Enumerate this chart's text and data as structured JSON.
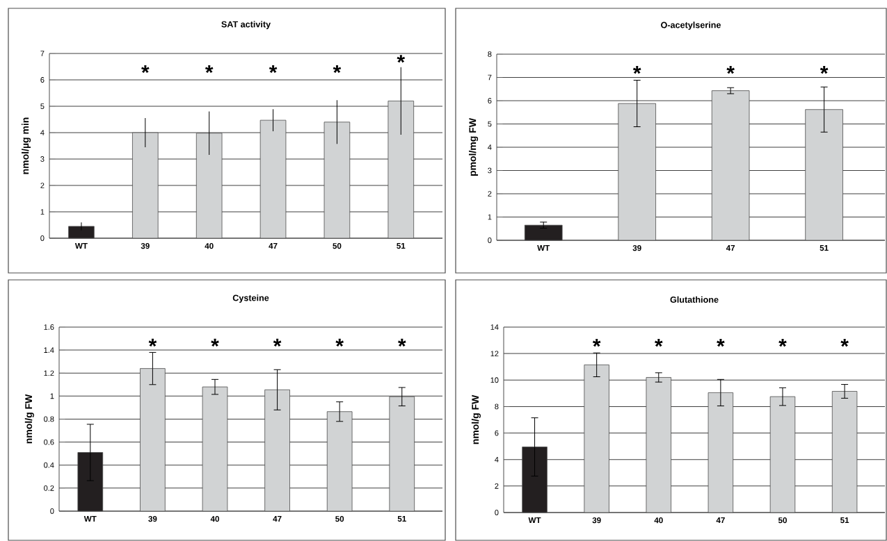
{
  "chart_data": [
    {
      "type": "bar",
      "title": "SAT activity",
      "ylabel": "nmol/µg min",
      "categories": [
        "WT",
        "39",
        "40",
        "47",
        "50",
        "51"
      ],
      "values": [
        0.45,
        4.0,
        3.98,
        4.47,
        4.4,
        5.2
      ],
      "errors": [
        0.15,
        0.55,
        0.82,
        0.42,
        0.83,
        1.28
      ],
      "colors": [
        "#231f20",
        "#d1d3d4",
        "#d1d3d4",
        "#d1d3d4",
        "#d1d3d4",
        "#d1d3d4"
      ],
      "value_labels": [
        null,
        "*",
        "*",
        "*",
        "*",
        "*"
      ],
      "ylim": [
        0,
        7
      ],
      "yticks": [
        0,
        1,
        2,
        3,
        4,
        5,
        6,
        7
      ],
      "grid": "y"
    },
    {
      "type": "bar",
      "title": "O-acetylserine",
      "ylabel": "pmol/mg FW",
      "categories": [
        "WT",
        "39",
        "47",
        "51"
      ],
      "values": [
        0.65,
        5.88,
        6.43,
        5.62
      ],
      "errors": [
        0.13,
        1.0,
        0.13,
        0.97
      ],
      "colors": [
        "#231f20",
        "#d1d3d4",
        "#d1d3d4",
        "#d1d3d4"
      ],
      "value_labels": [
        null,
        "*",
        "*",
        "*"
      ],
      "ylim": [
        0,
        8
      ],
      "yticks": [
        0,
        1,
        2,
        3,
        4,
        5,
        6,
        7,
        8
      ],
      "grid": "y"
    },
    {
      "type": "bar",
      "title": "Cysteine",
      "ylabel": "nmol/g FW",
      "categories": [
        "WT",
        "39",
        "40",
        "47",
        "50",
        "51"
      ],
      "values": [
        0.51,
        1.24,
        1.08,
        1.055,
        0.865,
        0.995
      ],
      "errors": [
        0.245,
        0.14,
        0.065,
        0.175,
        0.085,
        0.08
      ],
      "colors": [
        "#231f20",
        "#d1d3d4",
        "#d1d3d4",
        "#d1d3d4",
        "#d1d3d4",
        "#d1d3d4"
      ],
      "value_labels": [
        null,
        "*",
        "*",
        "*",
        "*",
        "*"
      ],
      "ylim": [
        0,
        1.6
      ],
      "yticks": [
        0,
        0.2,
        0.4,
        0.6,
        0.8,
        1,
        1.2,
        1.4,
        1.6
      ],
      "grid": "y"
    },
    {
      "type": "bar",
      "title": "Glutathione",
      "ylabel": "nmol/g FW",
      "categories": [
        "WT",
        "39",
        "40",
        "47",
        "50",
        "51"
      ],
      "values": [
        4.95,
        11.15,
        10.2,
        9.05,
        8.75,
        9.15
      ],
      "errors": [
        2.2,
        0.9,
        0.35,
        1.0,
        0.67,
        0.52
      ],
      "colors": [
        "#231f20",
        "#d1d3d4",
        "#d1d3d4",
        "#d1d3d4",
        "#d1d3d4",
        "#d1d3d4"
      ],
      "value_labels": [
        null,
        "*",
        "*",
        "*",
        "*",
        "*"
      ],
      "ylim": [
        0,
        14
      ],
      "yticks": [
        0,
        2,
        4,
        6,
        8,
        10,
        12,
        14
      ],
      "grid": "y"
    }
  ]
}
